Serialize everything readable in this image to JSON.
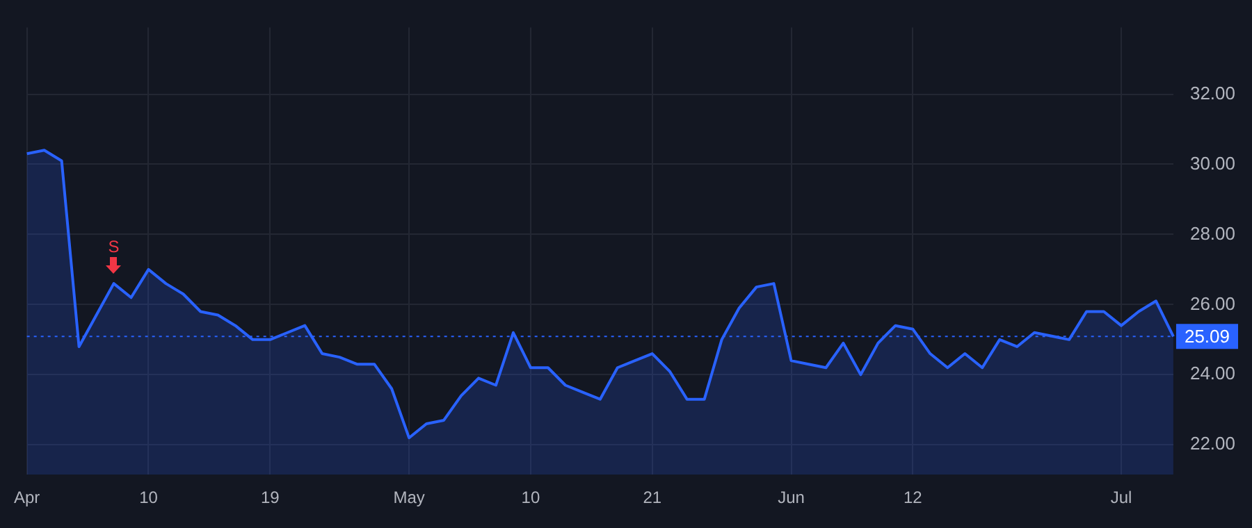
{
  "chart_data": {
    "type": "area",
    "categories": [
      "Apr",
      null,
      null,
      null,
      null,
      null,
      null,
      "10",
      null,
      null,
      null,
      null,
      null,
      null,
      "19",
      null,
      null,
      null,
      null,
      null,
      null,
      null,
      "May",
      null,
      null,
      null,
      null,
      null,
      null,
      "10",
      null,
      null,
      null,
      null,
      null,
      null,
      "21",
      null,
      null,
      null,
      null,
      null,
      null,
      null,
      "Jun",
      null,
      null,
      null,
      null,
      null,
      null,
      "12",
      null,
      null,
      null,
      null,
      null,
      null,
      null,
      null,
      null,
      null,
      null,
      "Jul",
      null,
      null,
      null
    ],
    "series": [
      {
        "color": "#2962ff",
        "values": [
          30.3,
          30.4,
          30.1,
          24.8,
          25.7,
          26.6,
          26.2,
          27.0,
          26.6,
          26.3,
          25.8,
          25.7,
          25.4,
          25.0,
          25.0,
          25.2,
          25.4,
          24.6,
          24.5,
          24.3,
          24.3,
          23.6,
          22.2,
          22.6,
          22.7,
          23.4,
          23.9,
          23.7,
          25.2,
          24.2,
          24.2,
          23.7,
          23.5,
          23.3,
          24.2,
          24.4,
          24.6,
          24.1,
          23.3,
          23.3,
          25.0,
          25.9,
          26.5,
          26.6,
          24.4,
          24.3,
          24.2,
          24.9,
          24.0,
          24.9,
          25.4,
          25.3,
          24.6,
          24.2,
          24.6,
          24.2,
          25.0,
          24.8,
          25.2,
          25.1,
          25.0,
          25.8,
          25.8,
          25.4,
          25.8,
          26.1,
          25.09
        ]
      }
    ],
    "ylim": [
      21.15,
      33.9
    ],
    "yticks": [
      {
        "value": 22,
        "label": "22.00"
      },
      {
        "value": 24,
        "label": "24.00"
      },
      {
        "value": 26,
        "label": "26.00"
      },
      {
        "value": 28,
        "label": "28.00"
      },
      {
        "value": 30,
        "label": "30.00"
      },
      {
        "value": 32,
        "label": "32.00"
      }
    ],
    "grid": true,
    "legend": false,
    "ref_lines": [
      {
        "axis": "y",
        "value": 25.09,
        "label": "25.09",
        "color": "#2962ff",
        "line_style": "dotted"
      }
    ],
    "annotations": [
      {
        "text": "S",
        "y": 26.6
      }
    ]
  }
}
